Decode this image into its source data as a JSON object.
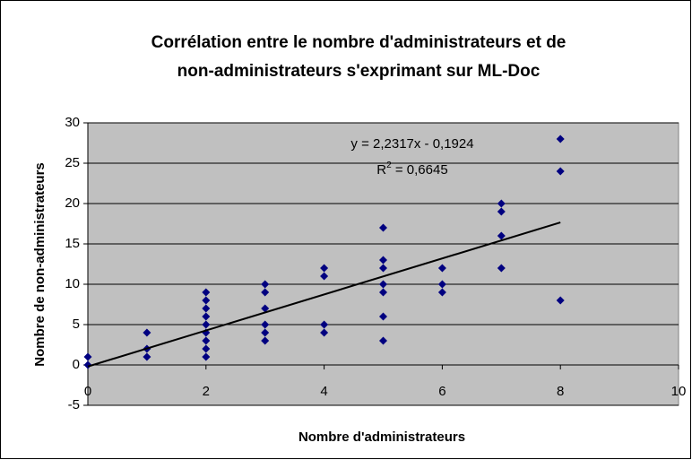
{
  "chart_data": {
    "type": "scatter",
    "title": [
      "Corrélation entre le nombre d'administrateurs et de",
      "non-administrateurs s'exprimant sur ML-Doc"
    ],
    "x_label": "Nombre d'administrateurs",
    "y_label": "Nombre de non-administrateurs",
    "series": [
      {
        "color": "#000080",
        "x": [
          0,
          0,
          1,
          1,
          1,
          2,
          2,
          2,
          2,
          2,
          2,
          2,
          2,
          2,
          3,
          3,
          3,
          3,
          3,
          3,
          4,
          4,
          4,
          4,
          5,
          5,
          5,
          5,
          5,
          5,
          5,
          6,
          6,
          6,
          7,
          7,
          7,
          7,
          8,
          8,
          8
        ],
        "values": [
          0,
          1,
          4,
          2,
          1,
          9,
          8,
          7,
          6,
          5,
          4,
          3,
          2,
          1,
          10,
          9,
          7,
          5,
          4,
          3,
          12,
          11,
          5,
          4,
          17,
          13,
          12,
          10,
          9,
          6,
          3,
          12,
          10,
          9,
          20,
          19,
          16,
          12,
          28,
          24,
          8
        ]
      }
    ],
    "trendline": {
      "slope": 2.2317,
      "intercept": -0.1924,
      "x_range": [
        0,
        8
      ],
      "color": "#000000",
      "equation": "y = 2,2317x - 0,1924",
      "r2_label": {
        "base": "R",
        "sup": "2",
        "rest": " = 0,6645"
      }
    },
    "xlim": [
      0,
      10
    ],
    "xticks": [
      0,
      2,
      4,
      6,
      8,
      10
    ],
    "ylim": [
      -5,
      30
    ],
    "yticks": [
      -5,
      0,
      5,
      10,
      15,
      20,
      25,
      30
    ],
    "grid": true,
    "plot_background": "#c0c0c0"
  }
}
